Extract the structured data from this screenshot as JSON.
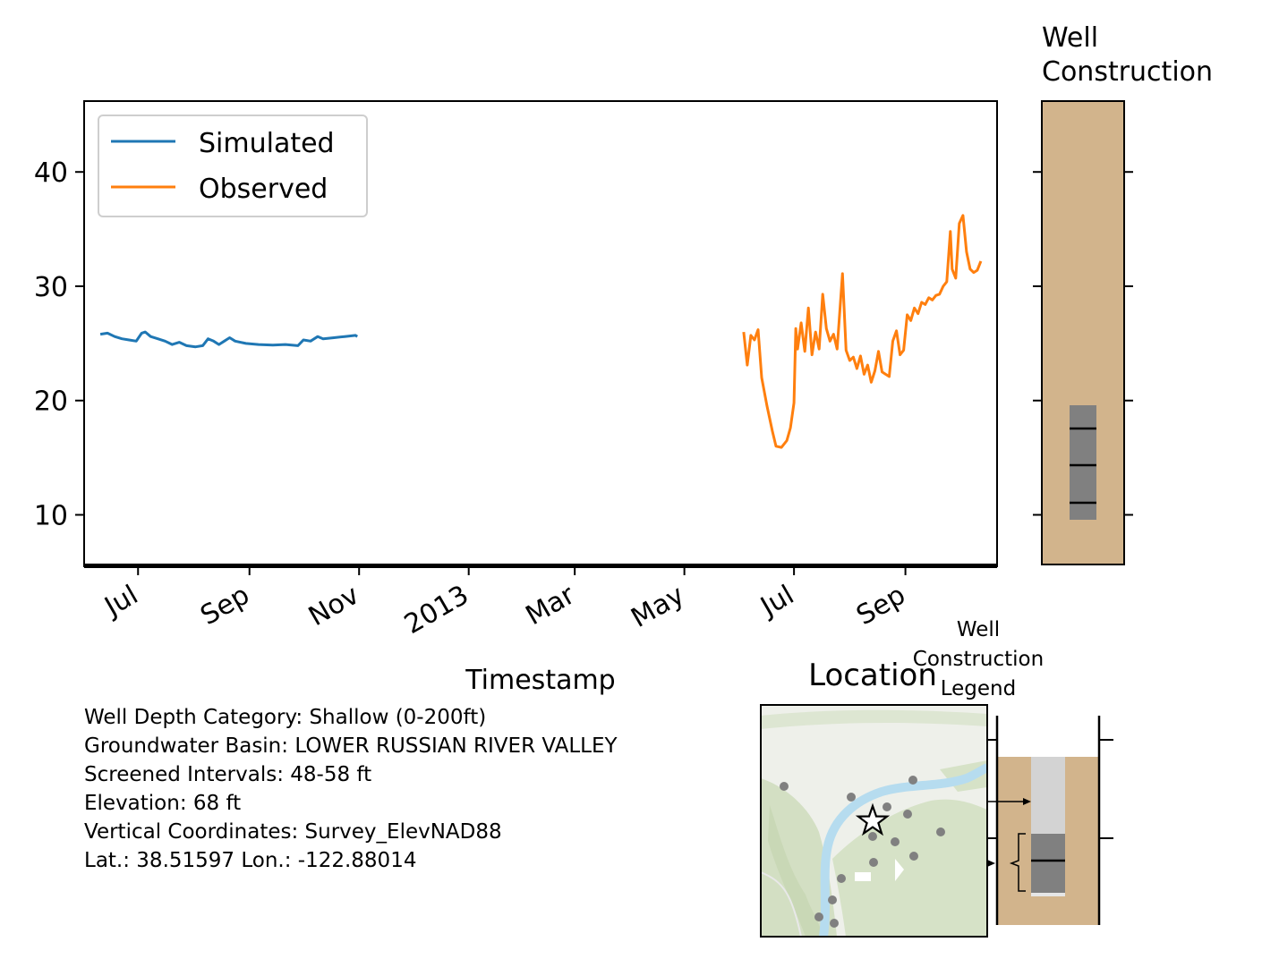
{
  "chart_data": [
    {
      "type": "line",
      "xlabel": "Timestamp",
      "ylabel": "",
      "x_range": [
        "2012-06-01",
        "2013-10-22"
      ],
      "ylim": [
        5.5,
        46.2
      ],
      "yticks": [
        10,
        20,
        30,
        40
      ],
      "xticks": [
        {
          "date": "2012-07-01",
          "label": "Jul"
        },
        {
          "date": "2012-09-01",
          "label": "Sep"
        },
        {
          "date": "2012-11-01",
          "label": "Nov"
        },
        {
          "date": "2013-01-01",
          "label": "2013"
        },
        {
          "date": "2013-03-01",
          "label": "Mar"
        },
        {
          "date": "2013-05-01",
          "label": "May"
        },
        {
          "date": "2013-07-01",
          "label": "Jul"
        },
        {
          "date": "2013-09-01",
          "label": "Sep"
        }
      ],
      "grid": false,
      "legend_position": "top-left",
      "series": [
        {
          "name": "Simulated",
          "color": "#1f77b4",
          "points": [
            [
              "2012-06-10",
              25.8
            ],
            [
              "2012-06-14",
              25.9
            ],
            [
              "2012-06-18",
              25.6
            ],
            [
              "2012-06-22",
              25.4
            ],
            [
              "2012-06-26",
              25.3
            ],
            [
              "2012-06-30",
              25.2
            ],
            [
              "2012-07-03",
              25.9
            ],
            [
              "2012-07-05",
              26.0
            ],
            [
              "2012-07-08",
              25.6
            ],
            [
              "2012-07-12",
              25.4
            ],
            [
              "2012-07-16",
              25.2
            ],
            [
              "2012-07-20",
              24.9
            ],
            [
              "2012-07-24",
              25.1
            ],
            [
              "2012-07-28",
              24.8
            ],
            [
              "2012-08-02",
              24.7
            ],
            [
              "2012-08-06",
              24.8
            ],
            [
              "2012-08-09",
              25.4
            ],
            [
              "2012-08-12",
              25.2
            ],
            [
              "2012-08-15",
              24.9
            ],
            [
              "2012-08-18",
              25.2
            ],
            [
              "2012-08-21",
              25.5
            ],
            [
              "2012-08-24",
              25.2
            ],
            [
              "2012-08-30",
              25.0
            ],
            [
              "2012-09-06",
              24.9
            ],
            [
              "2012-09-14",
              24.85
            ],
            [
              "2012-09-21",
              24.9
            ],
            [
              "2012-09-28",
              24.8
            ],
            [
              "2012-10-01",
              25.3
            ],
            [
              "2012-10-05",
              25.2
            ],
            [
              "2012-10-09",
              25.6
            ],
            [
              "2012-10-12",
              25.4
            ],
            [
              "2012-10-18",
              25.5
            ],
            [
              "2012-10-24",
              25.6
            ],
            [
              "2012-10-30",
              25.7
            ],
            [
              "2012-10-31",
              25.6
            ]
          ]
        },
        {
          "name": "Observed",
          "color": "#ff7f0e",
          "points": [
            [
              "2013-06-03",
              26.0
            ],
            [
              "2013-06-05",
              23.1
            ],
            [
              "2013-06-07",
              25.7
            ],
            [
              "2013-06-09",
              25.3
            ],
            [
              "2013-06-11",
              26.2
            ],
            [
              "2013-06-13",
              22.0
            ],
            [
              "2013-06-16",
              19.5
            ],
            [
              "2013-06-19",
              17.3
            ],
            [
              "2013-06-21",
              16.0
            ],
            [
              "2013-06-24",
              15.9
            ],
            [
              "2013-06-27",
              16.5
            ],
            [
              "2013-06-29",
              17.6
            ],
            [
              "2013-07-01",
              19.8
            ],
            [
              "2013-07-02",
              26.3
            ],
            [
              "2013-07-03",
              24.5
            ],
            [
              "2013-07-05",
              26.8
            ],
            [
              "2013-07-07",
              24.3
            ],
            [
              "2013-07-09",
              28.1
            ],
            [
              "2013-07-11",
              24.0
            ],
            [
              "2013-07-13",
              26.0
            ],
            [
              "2013-07-15",
              24.5
            ],
            [
              "2013-07-17",
              29.3
            ],
            [
              "2013-07-19",
              26.3
            ],
            [
              "2013-07-21",
              25.2
            ],
            [
              "2013-07-23",
              25.8
            ],
            [
              "2013-07-25",
              24.5
            ],
            [
              "2013-07-28",
              31.1
            ],
            [
              "2013-07-30",
              24.4
            ],
            [
              "2013-08-01",
              23.5
            ],
            [
              "2013-08-03",
              23.8
            ],
            [
              "2013-08-05",
              22.8
            ],
            [
              "2013-08-07",
              23.9
            ],
            [
              "2013-08-09",
              22.3
            ],
            [
              "2013-08-11",
              23.1
            ],
            [
              "2013-08-13",
              21.6
            ],
            [
              "2013-08-15",
              22.6
            ],
            [
              "2013-08-17",
              24.3
            ],
            [
              "2013-08-19",
              22.5
            ],
            [
              "2013-08-21",
              22.3
            ],
            [
              "2013-08-23",
              22.1
            ],
            [
              "2013-08-25",
              25.2
            ],
            [
              "2013-08-27",
              26.1
            ],
            [
              "2013-08-29",
              24.0
            ],
            [
              "2013-08-31",
              24.4
            ],
            [
              "2013-09-02",
              27.5
            ],
            [
              "2013-09-04",
              27.0
            ],
            [
              "2013-09-06",
              28.1
            ],
            [
              "2013-09-08",
              27.6
            ],
            [
              "2013-09-10",
              28.6
            ],
            [
              "2013-09-12",
              28.4
            ],
            [
              "2013-09-14",
              29.0
            ],
            [
              "2013-09-16",
              28.8
            ],
            [
              "2013-09-18",
              29.2
            ],
            [
              "2013-09-20",
              29.3
            ],
            [
              "2013-09-22",
              30.0
            ],
            [
              "2013-09-24",
              30.4
            ],
            [
              "2013-09-26",
              34.8
            ],
            [
              "2013-09-27",
              31.5
            ],
            [
              "2013-09-29",
              30.7
            ],
            [
              "2013-10-01",
              35.5
            ],
            [
              "2013-10-03",
              36.2
            ],
            [
              "2013-10-05",
              33.0
            ],
            [
              "2013-10-07",
              31.5
            ],
            [
              "2013-10-09",
              31.2
            ],
            [
              "2013-10-11",
              31.4
            ],
            [
              "2013-10-13",
              32.2
            ]
          ]
        }
      ]
    }
  ],
  "well_construction": {
    "title": "Well Construction",
    "casing_color": "#d2b48c",
    "screen_color": "#808080",
    "screen_marks_count": 3
  },
  "location": {
    "title": "Location",
    "target_marker": "star-icon"
  },
  "legend_panel": {
    "title": "Well Construction Legend"
  },
  "info": {
    "lines": [
      "Well Depth Category: Shallow (0-200ft)",
      "Groundwater Basin: LOWER RUSSIAN RIVER VALLEY",
      "Screened Intervals: 48-58 ft",
      "Elevation: 68 ft",
      "Vertical Coordinates: Survey_ElevNAD88",
      "Lat.: 38.51597 Lon.: -122.88014"
    ]
  }
}
